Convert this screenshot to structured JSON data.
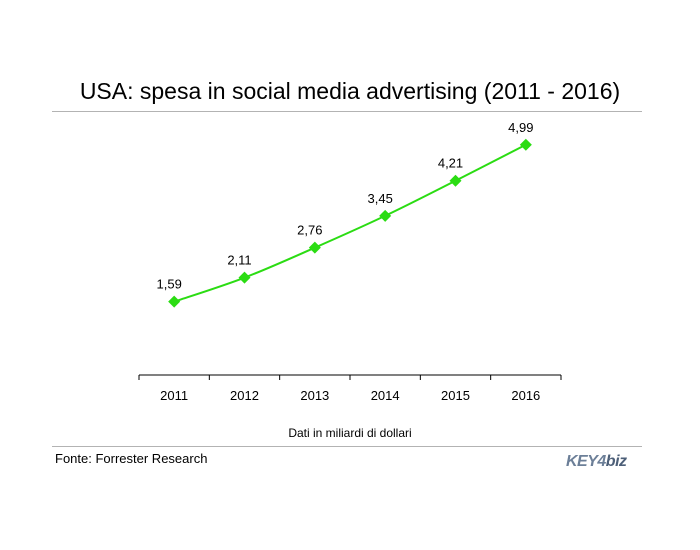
{
  "page": {
    "title": "USA: spesa in social media advertising (2011 - 2016)",
    "note": "Dati in miliardi di dollari",
    "source": "Fonte: Forrester Research",
    "logo": {
      "part1": "KEY4",
      "part2": "biz"
    },
    "colors": {
      "line": "#2bdc13",
      "marker": "#2bdc13",
      "rule": "#b3b3b3",
      "axis": "#000000"
    }
  },
  "chart_data": {
    "type": "line",
    "title": "USA: spesa in social media advertising (2011 - 2016)",
    "categories": [
      "2011",
      "2012",
      "2013",
      "2014",
      "2015",
      "2016"
    ],
    "data_labels": [
      "1,59",
      "2,11",
      "2,76",
      "3,45",
      "4,21",
      "4,99"
    ],
    "series": [
      {
        "values": [
          1.59,
          2.11,
          2.76,
          3.45,
          4.21,
          4.99
        ]
      }
    ],
    "xlabel": "",
    "ylabel": "",
    "ylim": [
      0,
      5.7
    ],
    "grid": false,
    "legend": "none",
    "marker": "diamond"
  }
}
